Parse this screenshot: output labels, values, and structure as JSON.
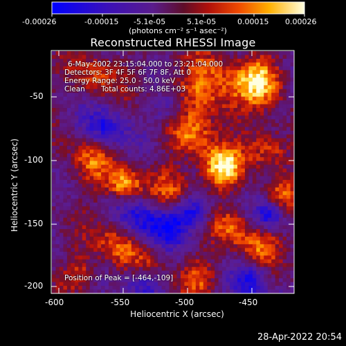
{
  "colorbar": {
    "tick_labels": [
      "-0.00026",
      "-0.00015",
      "-5.1e-05",
      "5.1e-05",
      "0.00015",
      "0.00026"
    ],
    "unit_label": "(photons cm⁻² s⁻¹ asec⁻²)",
    "range": [
      -0.00026,
      0.00026
    ]
  },
  "title": "Reconstructed RHESSI Image",
  "annotations": {
    "time_range": "6-May-2002 23:15:04.000 to 23:21:04.000",
    "detectors": "Detectors: 3F 4F 5F 6F 7F 8F, Att 0",
    "energy": "Energy Range: 25.0 - 50.0 keV",
    "clean": "Clean       Total counts: 4.86E+03",
    "peak": "Position of Peak = [-464,-109]"
  },
  "axes": {
    "xlabel": "Heliocentric X (arcsec)",
    "ylabel": "Heliocentric Y (arcsec)",
    "xticks": [
      "-600",
      "-550",
      "-500",
      "-450"
    ],
    "yticks": [
      "-50",
      "-100",
      "-150",
      "-200"
    ],
    "xlim": [
      -605,
      -415
    ],
    "ylim": [
      -207,
      -20
    ]
  },
  "footer": {
    "timestamp": "28-Apr-2022 20:54"
  },
  "colors": {
    "background": "#000000",
    "axis": "#ffffff"
  }
}
